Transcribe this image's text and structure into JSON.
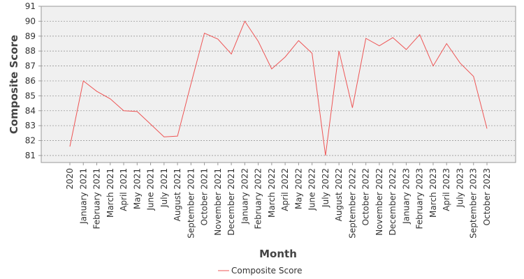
{
  "chart_data": {
    "type": "line",
    "x_label": "Month",
    "y_label": "Composite Score",
    "categories": [
      "2020",
      "January 2021",
      "February 2021",
      "March 2021",
      "April 2021",
      "May 2021",
      "June 2021",
      "July 2021",
      "August 2021",
      "September 2021",
      "October 2021",
      "November 2021",
      "December 2021",
      "January 2022",
      "February 2022",
      "March 2022",
      "April 2022",
      "May 2022",
      "June 2022",
      "July 2022",
      "August 2022",
      "September 2022",
      "October 2022",
      "November 2022",
      "December 2022",
      "January 2023",
      "February 2023",
      "March 2023",
      "April 2023",
      "July 2023",
      "September 2023",
      "October 2023"
    ],
    "series": [
      {
        "name": "Composite Score",
        "color": "#ee5555",
        "values": [
          81.6,
          86.0,
          85.3,
          84.8,
          84.0,
          83.95,
          83.1,
          82.25,
          82.3,
          85.8,
          89.2,
          88.8,
          87.8,
          90.0,
          88.65,
          86.8,
          87.6,
          88.7,
          87.85,
          81.0,
          88.0,
          84.2,
          88.85,
          88.35,
          88.9,
          88.1,
          89.1,
          87.0,
          88.5,
          87.2,
          86.3,
          82.8
        ]
      }
    ],
    "ylim": [
      80.53,
      91
    ],
    "yticks": [
      81,
      82,
      83,
      84,
      85,
      86,
      87,
      88,
      89,
      90,
      91
    ],
    "grid": true,
    "legend": "bottom"
  }
}
